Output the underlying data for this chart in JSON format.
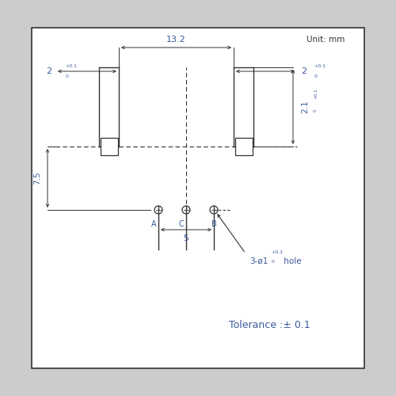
{
  "bg_color": "#cccccc",
  "box_color": "#ffffff",
  "line_color": "#333333",
  "dim_color": "#3a5a9a",
  "title_text": "Unit: mm",
  "tolerance_text": "Tolerance :± 0.1",
  "hole_label": "3-ø1",
  "hole_sup": "+0.1",
  "hole_sub": "0",
  "hole_suffix": " hole",
  "dim_132": "13.2",
  "dim_2left": "2",
  "dim_2left_sup": "+0.1",
  "dim_2left_sub": "0",
  "dim_2right": "2",
  "dim_2right_sup": "+0.1",
  "dim_2right_sub": "0",
  "dim_21": "2.1",
  "dim_21_sup": "+0.1",
  "dim_21_sub": "0",
  "dim_75": "7.5",
  "dim_5": "5",
  "labels_ACB": [
    "A",
    "C",
    "B"
  ]
}
